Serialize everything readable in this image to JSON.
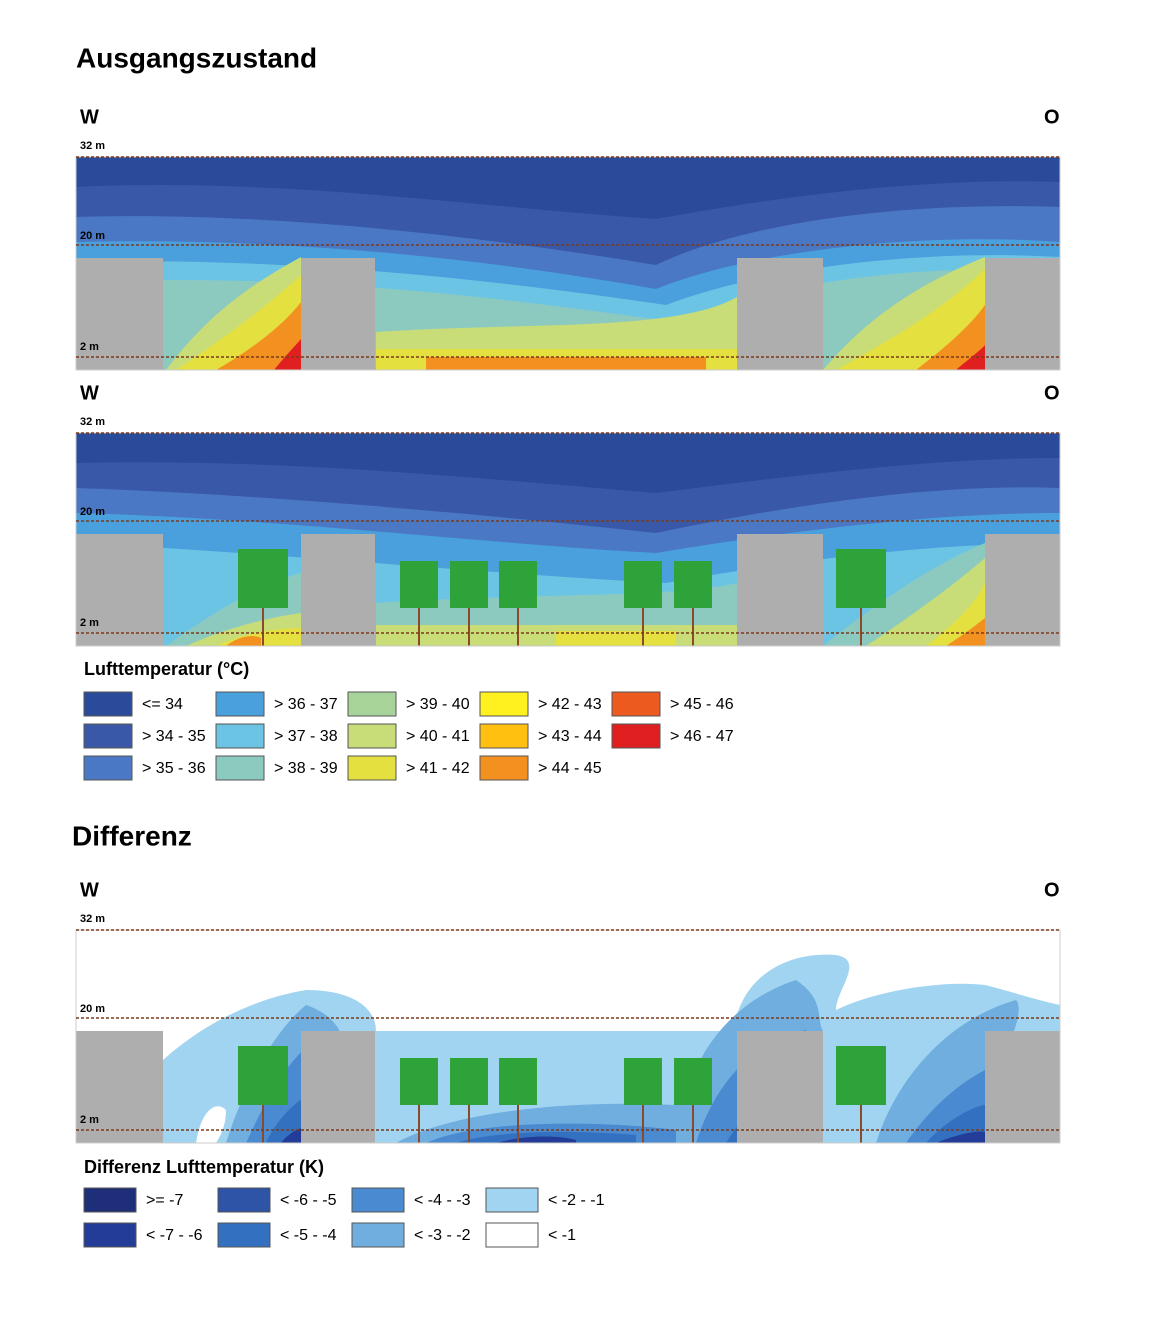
{
  "sections": [
    {
      "title": "Ausgangszustand",
      "panels": [
        {
          "west": "W",
          "east": "O",
          "levels": [
            "32 m",
            "20 m",
            "2 m"
          ]
        },
        {
          "west": "W",
          "east": "O",
          "levels": [
            "32 m",
            "20 m",
            "2 m"
          ]
        }
      ],
      "legend": {
        "title": "Lufttemperatur (°C)",
        "items": [
          {
            "label": "<= 34",
            "color": "#2a4a9a"
          },
          {
            "label": "> 34 - 35",
            "color": "#3a58a8"
          },
          {
            "label": "> 35 - 36",
            "color": "#4a78c4"
          },
          {
            "label": "> 36 - 37",
            "color": "#4aa0dc"
          },
          {
            "label": "> 37 - 38",
            "color": "#6cc4e4"
          },
          {
            "label": "> 38 - 39",
            "color": "#8ccac0"
          },
          {
            "label": "> 39 - 40",
            "color": "#a8d49a"
          },
          {
            "label": "> 40 - 41",
            "color": "#c8dc78"
          },
          {
            "label": "> 41 - 42",
            "color": "#e4e040"
          },
          {
            "label": "> 42 - 43",
            "color": "#fff020"
          },
          {
            "label": "> 43 - 44",
            "color": "#ffc010"
          },
          {
            "label": "> 44 - 45",
            "color": "#f29020"
          },
          {
            "label": "> 45 - 46",
            "color": "#ec5a20"
          },
          {
            "label": "> 46 - 47",
            "color": "#e02020"
          }
        ]
      }
    },
    {
      "title": "Differenz",
      "panels": [
        {
          "west": "W",
          "east": "O",
          "levels": [
            "32 m",
            "20 m",
            "2 m"
          ]
        }
      ],
      "legend": {
        "title": "Differenz Lufttemperatur (K)",
        "items": [
          {
            "label": ">= -7",
            "color": "#1e2e78"
          },
          {
            "label": "< -7 - -6",
            "color": "#223c98"
          },
          {
            "label": "< -6 - -5",
            "color": "#2e54a8"
          },
          {
            "label": "< -5 - -4",
            "color": "#3470c0"
          },
          {
            "label": "< -4 - -3",
            "color": "#4a8ad0"
          },
          {
            "label": "< -3 - -2",
            "color": "#70aee0"
          },
          {
            "label": "< -2 - -1",
            "color": "#a0d4f0"
          },
          {
            "label": "< -1",
            "color": "#ffffff"
          }
        ]
      }
    }
  ]
}
